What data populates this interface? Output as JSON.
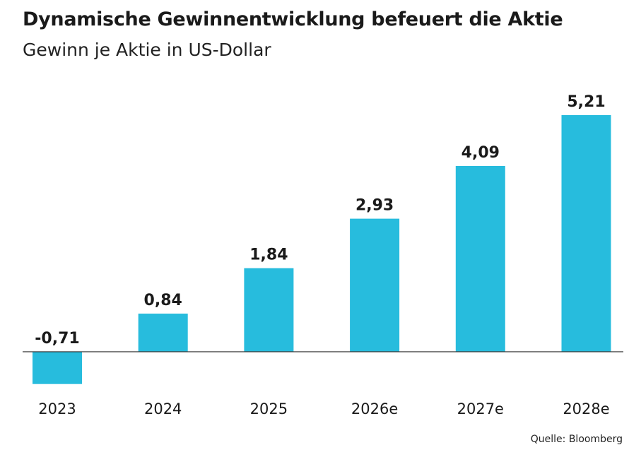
{
  "header": {
    "title": "Dynamische Gewinnentwicklung befeuert die Aktie",
    "subtitle": "Gewinn je Aktie in US-Dollar"
  },
  "source": "Quelle: Bloomberg",
  "colors": {
    "bar": "#27BCDD",
    "axis": "#333333",
    "text": "#1a1a1a"
  },
  "chart_data": {
    "type": "bar",
    "title": "Dynamische Gewinnentwicklung befeuert die Aktie",
    "subtitle": "Gewinn je Aktie in US-Dollar",
    "categories": [
      "2023",
      "2024",
      "2025",
      "2026e",
      "2027e",
      "2028e"
    ],
    "values": [
      -0.71,
      0.84,
      1.84,
      2.93,
      4.09,
      5.21
    ],
    "value_labels": [
      "-0,71",
      "0,84",
      "1,84",
      "2,93",
      "4,09",
      "5,21"
    ],
    "ylim": [
      -0.71,
      5.21
    ],
    "grid": false,
    "legend": "none"
  }
}
